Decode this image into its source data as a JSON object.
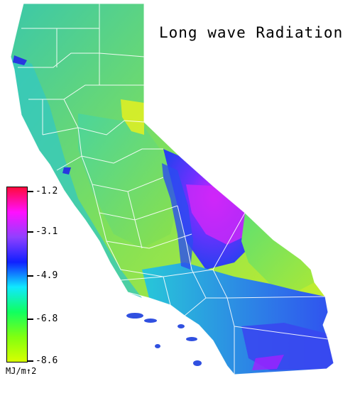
{
  "title": "Long wave Radiation",
  "legend": {
    "ticks": [
      "-1.2",
      "-3.1",
      "-4.9",
      "-6.8",
      "-8.6"
    ],
    "unit": "MJ/m↑2",
    "colors": [
      "#ff0a3c",
      "#ff10ff",
      "#9040ff",
      "#1020ff",
      "#10e8ff",
      "#10ff60",
      "#80ff10",
      "#d8ff00"
    ]
  },
  "map": {
    "region": "California",
    "land_colors": {
      "north": "#7ad86a",
      "northeast": "#b8e838",
      "central": "#4fd48c",
      "coast": "#2fc8c0",
      "desert_high": "#c030ff",
      "desert": "#3b4cf0",
      "south": "#30d0e0"
    },
    "boundary_color": "#ffffff"
  }
}
